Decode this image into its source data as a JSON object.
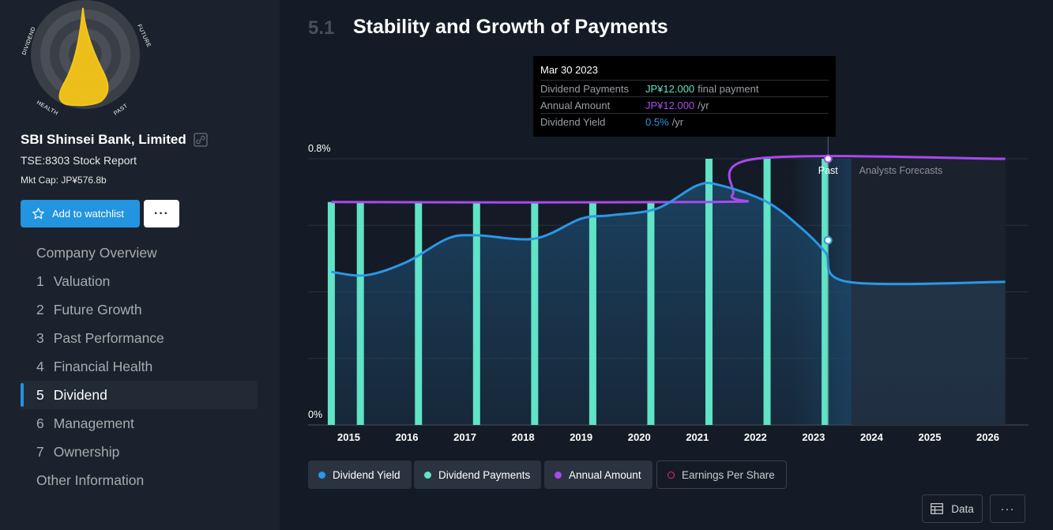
{
  "company": {
    "name": "SBI Shinsei Bank, Limited",
    "ticker": "TSE:8303 Stock Report",
    "mkt_cap": "Mkt Cap: JP¥576.8b"
  },
  "snowflake": {
    "labels": [
      "DIVIDEND",
      "FUTURE",
      "PAST",
      "HEALTH"
    ],
    "color": "#f5c518"
  },
  "actions": {
    "watchlist": "Add to watchlist",
    "more": "···"
  },
  "nav": [
    {
      "num": "",
      "label": "Company Overview",
      "active": false
    },
    {
      "num": "1",
      "label": "Valuation",
      "active": false
    },
    {
      "num": "2",
      "label": "Future Growth",
      "active": false
    },
    {
      "num": "3",
      "label": "Past Performance",
      "active": false
    },
    {
      "num": "4",
      "label": "Financial Health",
      "active": false
    },
    {
      "num": "5",
      "label": "Dividend",
      "active": true
    },
    {
      "num": "6",
      "label": "Management",
      "active": false
    },
    {
      "num": "7",
      "label": "Ownership",
      "active": false
    },
    {
      "num": "",
      "label": "Other Information",
      "active": false
    }
  ],
  "section": {
    "number": "5.1",
    "title": "Stability and Growth of Payments"
  },
  "tooltip": {
    "date": "Mar 30 2023",
    "rows": [
      {
        "label": "Dividend Payments",
        "value": "JP¥12.000",
        "suffix": "final payment",
        "color": "green"
      },
      {
        "label": "Annual Amount",
        "value": "JP¥12.000",
        "suffix": "/yr",
        "color": "purple"
      },
      {
        "label": "Dividend Yield",
        "value": "0.5%",
        "suffix": "/yr",
        "color": "blue"
      }
    ]
  },
  "chart_data": {
    "type": "line",
    "y_tick_labels": [
      "0.8%",
      "0%"
    ],
    "x_ticks": [
      "2015",
      "2016",
      "2017",
      "2018",
      "2019",
      "2020",
      "2021",
      "2022",
      "2023",
      "2024",
      "2025",
      "2026"
    ],
    "x_range": [
      2014.3,
      2026.7
    ],
    "past_label": "Past",
    "forecast_label": "Analysts Forecasts",
    "past_end": 2023.25,
    "colors": {
      "yield": "#2a98e6",
      "payments": "#60e3c6",
      "annual": "#a84aed",
      "eps": "#e0306a"
    },
    "series": [
      {
        "name": "Dividend Yield",
        "points": [
          [
            2014.7,
            0.46
          ],
          [
            2015.3,
            0.45
          ],
          [
            2016.0,
            0.49
          ],
          [
            2016.7,
            0.56
          ],
          [
            2017.2,
            0.57
          ],
          [
            2018.2,
            0.56
          ],
          [
            2019.0,
            0.62
          ],
          [
            2019.5,
            0.63
          ],
          [
            2020.3,
            0.65
          ],
          [
            2021.0,
            0.72
          ],
          [
            2021.4,
            0.72
          ],
          [
            2022.2,
            0.67
          ],
          [
            2022.8,
            0.59
          ],
          [
            2023.2,
            0.52
          ],
          [
            2023.6,
            0.43
          ],
          [
            2026.3,
            0.43
          ]
        ]
      },
      {
        "name": "Dividend Payments",
        "bars": [
          [
            2014.7,
            0.67
          ],
          [
            2015.2,
            0.67
          ],
          [
            2016.2,
            0.67
          ],
          [
            2017.2,
            0.67
          ],
          [
            2018.2,
            0.67
          ],
          [
            2019.2,
            0.67
          ],
          [
            2020.2,
            0.67
          ],
          [
            2021.2,
            0.8
          ],
          [
            2022.2,
            0.8
          ],
          [
            2023.2,
            0.8
          ]
        ]
      },
      {
        "name": "Annual Amount",
        "points": [
          [
            2014.7,
            0.67
          ],
          [
            2021.3,
            0.67
          ],
          [
            2021.6,
            0.69
          ],
          [
            2022.0,
            0.8
          ],
          [
            2026.3,
            0.8
          ]
        ]
      }
    ],
    "marker_x": 2023.25
  },
  "legend": [
    {
      "label": "Dividend Yield",
      "color": "#2a98e6",
      "active": true
    },
    {
      "label": "Dividend Payments",
      "color": "#60e3c6",
      "active": true
    },
    {
      "label": "Annual Amount",
      "color": "#a84aed",
      "active": true
    },
    {
      "label": "Earnings Per Share",
      "color": "#e0306a",
      "active": false
    }
  ],
  "footer": {
    "data_label": "Data",
    "more": "···"
  }
}
